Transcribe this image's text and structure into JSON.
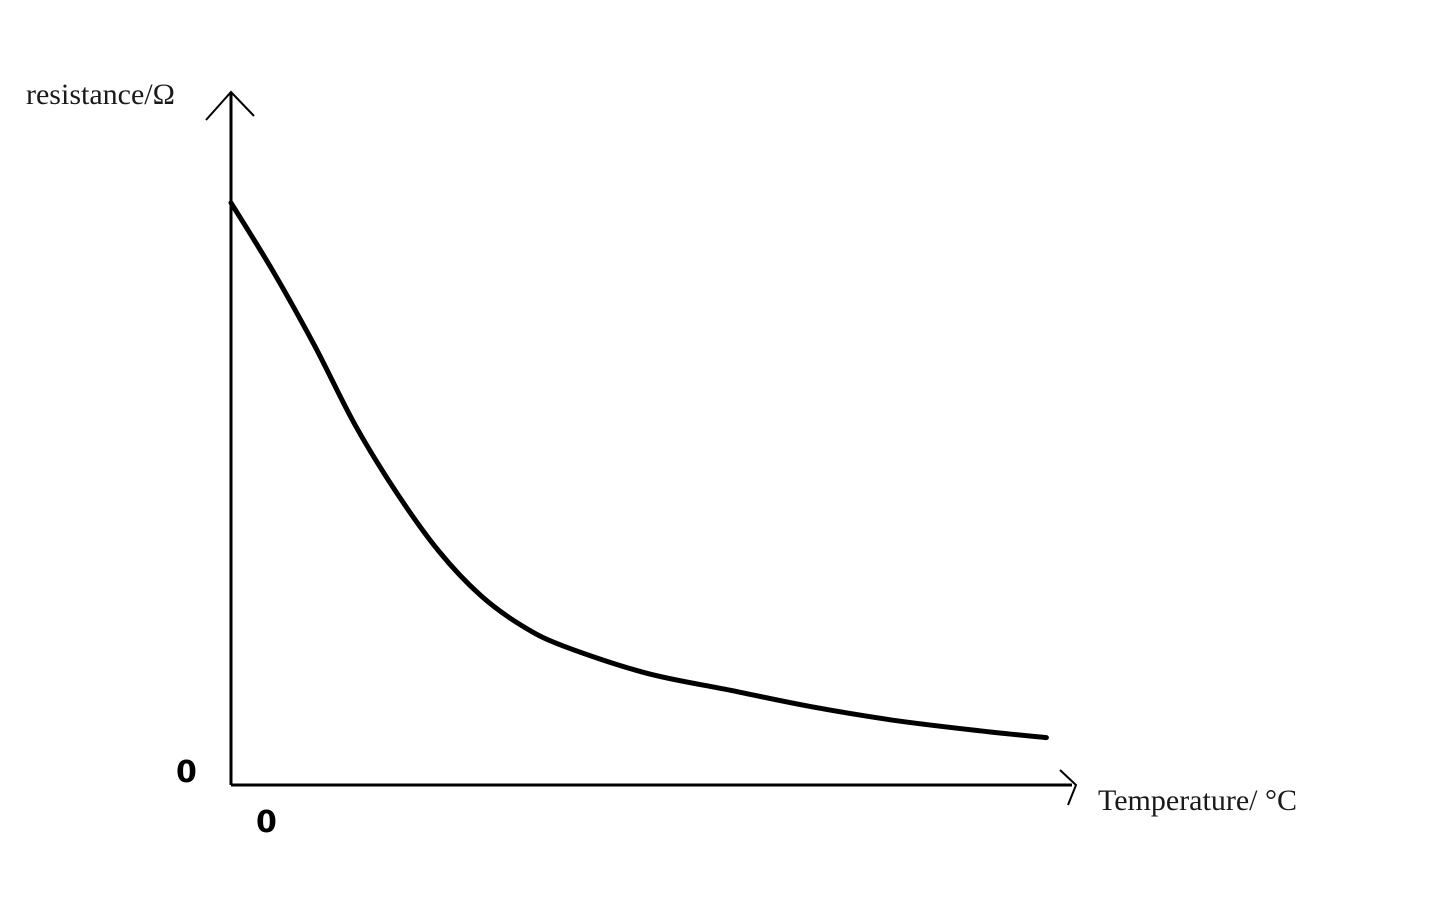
{
  "chart_data": {
    "type": "line",
    "xlabel": "Temperature/ °C",
    "ylabel": "resistance/Ω",
    "x_origin_label": "0",
    "y_origin_label": "0",
    "xlim": [
      0,
      10
    ],
    "ylim": [
      0,
      10
    ],
    "grid": false,
    "legend": "none",
    "series": [
      {
        "x": [
          0,
          0.5,
          1,
          1.5,
          2,
          2.5,
          3,
          3.5,
          4,
          5,
          6,
          7,
          8,
          9,
          9.8
        ],
        "y": [
          8.6,
          7.6,
          6.5,
          5.3,
          4.3,
          3.45,
          2.8,
          2.35,
          2.05,
          1.65,
          1.4,
          1.15,
          0.95,
          0.8,
          0.7
        ]
      }
    ],
    "colors": {
      "axis": "#000000",
      "curve": "#000000"
    }
  }
}
